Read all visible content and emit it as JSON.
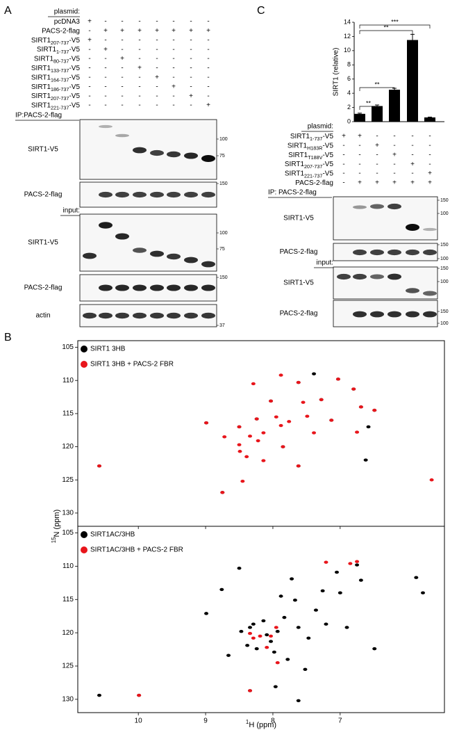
{
  "panel_labels": [
    "A",
    "B",
    "C"
  ],
  "panel_a": {
    "plasmid_header": "plasmid:",
    "rows": [
      {
        "label": {
          "name": "pcDNA3"
        },
        "marks": [
          "+",
          "-",
          "-",
          "-",
          "-",
          "-",
          "-",
          "-"
        ]
      },
      {
        "label": {
          "name": "PACS-2-flag"
        },
        "marks": [
          "-",
          "+",
          "+",
          "+",
          "+",
          "+",
          "+",
          "+"
        ]
      },
      {
        "label": {
          "name": "SIRT1",
          "sub": "207-737",
          "suffix": "-V5"
        },
        "marks": [
          "+",
          "-",
          "-",
          "-",
          "-",
          "-",
          "-",
          "-"
        ]
      },
      {
        "label": {
          "name": "SIRT1",
          "sub": "1-737",
          "suffix": "-V5"
        },
        "marks": [
          "-",
          "+",
          "-",
          "-",
          "-",
          "-",
          "-",
          "-"
        ]
      },
      {
        "label": {
          "name": "SIRT1",
          "sub": "80-737",
          "suffix": "-V5"
        },
        "marks": [
          "-",
          "-",
          "+",
          "-",
          "-",
          "-",
          "-",
          "-"
        ]
      },
      {
        "label": {
          "name": "SIRT1",
          "sub": "133-737",
          "suffix": "-V5"
        },
        "marks": [
          "-",
          "-",
          "-",
          "+",
          "-",
          "-",
          "-",
          "-"
        ]
      },
      {
        "label": {
          "name": "SIRT1",
          "sub": "164-737",
          "suffix": "-V5"
        },
        "marks": [
          "-",
          "-",
          "-",
          "-",
          "+",
          "-",
          "-",
          "-"
        ]
      },
      {
        "label": {
          "name": "SIRT1",
          "sub": "186-737",
          "suffix": "-V5"
        },
        "marks": [
          "-",
          "-",
          "-",
          "-",
          "-",
          "+",
          "-",
          "-"
        ]
      },
      {
        "label": {
          "name": "SIRT1",
          "sub": "207-737",
          "suffix": "-V5"
        },
        "marks": [
          "-",
          "-",
          "-",
          "-",
          "-",
          "-",
          "+",
          "-"
        ]
      },
      {
        "label": {
          "name": "SIRT1",
          "sub": "221-737",
          "suffix": "-V5"
        },
        "marks": [
          "-",
          "-",
          "-",
          "-",
          "-",
          "-",
          "-",
          "+"
        ]
      }
    ],
    "ip_header": "IP:PACS-2-flag",
    "input_header": "input:",
    "blots": [
      {
        "label": "SIRT1-V5",
        "markers": [
          100,
          75
        ]
      },
      {
        "label": "PACS-2-flag",
        "markers": [
          150
        ]
      },
      {
        "label": "SIRT1-V5",
        "markers": [
          100,
          75
        ]
      },
      {
        "label": "PACS-2-flag",
        "markers": [
          150
        ]
      },
      {
        "label": "actin",
        "markers": [
          37
        ]
      }
    ]
  },
  "panel_c": {
    "plasmid_header": "plasmid:",
    "rows": [
      {
        "label": {
          "name": "SIRT1",
          "sub": "1-737",
          "suffix": "-V5"
        },
        "marks": [
          "+",
          "+",
          "-",
          "-",
          "-",
          "-"
        ]
      },
      {
        "label": {
          "name": "SIRT1",
          "sub": "H183R",
          "suffix": "-V5"
        },
        "marks": [
          "-",
          "-",
          "+",
          "-",
          "-",
          "-"
        ]
      },
      {
        "label": {
          "name": "SIRT1",
          "sub": "T188V",
          "suffix": "-V5"
        },
        "marks": [
          "-",
          "-",
          "-",
          "+",
          "-",
          "-"
        ]
      },
      {
        "label": {
          "name": "SIRT1",
          "sub": "207-737",
          "suffix": "-V5"
        },
        "marks": [
          "-",
          "-",
          "-",
          "-",
          "+",
          "-"
        ]
      },
      {
        "label": {
          "name": "SIRT1",
          "sub": "221-737",
          "suffix": "-V5"
        },
        "marks": [
          "-",
          "-",
          "-",
          "-",
          "-",
          "+"
        ]
      },
      {
        "label": {
          "name": "PACS-2-flag"
        },
        "marks": [
          "-",
          "+",
          "+",
          "+",
          "+",
          "+"
        ]
      }
    ],
    "ip_header": "IP: PACS-2-flag",
    "input_header": "input:",
    "blots": [
      {
        "label": "SIRT1-V5",
        "markers": [
          150,
          100
        ]
      },
      {
        "label": "PACS-2-flag",
        "markers": [
          150,
          100
        ]
      },
      {
        "label": "SIRT1-V5",
        "markers": [
          150,
          100
        ]
      },
      {
        "label": "PACS-2-flag",
        "markers": [
          150,
          100
        ]
      }
    ]
  },
  "panel_b": {
    "y_label": {
      "sup": "15",
      "text": "N (ppm)"
    },
    "x_label": {
      "sup": "1",
      "text": "H (ppm)"
    }
  },
  "chart_data": [
    {
      "type": "bar",
      "y_label": "SIRT1 (relative)",
      "categories": [
        null,
        null,
        null,
        null,
        null
      ],
      "values": [
        1.1,
        2.2,
        4.5,
        11.5,
        0.6
      ],
      "errors": [
        0.1,
        0.15,
        0.2,
        0.8,
        0.05
      ],
      "color": "#000000",
      "ylim": [
        0,
        14
      ],
      "yticks": [
        0,
        2,
        4,
        6,
        8,
        10,
        12,
        14
      ],
      "annotations": [
        "**",
        "**",
        "**",
        "***"
      ]
    },
    {
      "type": "scatter",
      "xlim": [
        10.9,
        5.45
      ],
      "xticks": [
        10,
        9,
        8,
        7
      ],
      "ylim": [
        104,
        132
      ],
      "yticks": [
        105,
        110,
        115,
        120,
        125,
        130
      ],
      "series": [
        {
          "name": "SIRT1 3HB",
          "color": "#000000",
          "x": [
            10.58,
            8.99,
            8.5,
            8.24,
            8.03,
            7.85,
            7.62,
            7.28,
            7.13,
            7.03,
            6.8,
            6.69,
            6.58,
            6.49,
            8.75,
            7.62,
            7.39,
            6.62
          ],
          "values": [
            122.9,
            116.4,
            117.0,
            115.8,
            113.1,
            120.0,
            110.3,
            112.9,
            116.0,
            109.8,
            111.3,
            114.0,
            117.0,
            114.5,
            126.9,
            122.9,
            109.0,
            122.0
          ]
        },
        {
          "name": "SIRT1 3HB + PACS-2 FBR",
          "color": "#e8151b",
          "x": [
            10.58,
            8.99,
            8.72,
            8.5,
            8.34,
            8.5,
            8.75,
            8.45,
            8.49,
            8.39,
            8.24,
            8.14,
            8.03,
            7.95,
            7.88,
            7.85,
            8.14,
            7.76,
            7.62,
            7.55,
            7.49,
            7.39,
            7.28,
            7.13,
            7.03,
            6.8,
            6.69,
            6.75,
            8.22,
            7.62,
            8.29,
            7.88,
            6.49,
            5.64
          ],
          "values": [
            122.9,
            116.4,
            118.5,
            117.0,
            118.4,
            119.7,
            126.9,
            125.2,
            120.7,
            121.5,
            115.8,
            117.9,
            113.1,
            115.5,
            116.8,
            120.0,
            122.1,
            116.2,
            110.3,
            113.3,
            115.4,
            117.9,
            112.9,
            116.0,
            109.8,
            111.3,
            114.0,
            117.8,
            119.1,
            122.9,
            110.5,
            109.2,
            114.5,
            125.0
          ]
        }
      ]
    },
    {
      "type": "scatter",
      "xlim": [
        10.9,
        5.45
      ],
      "xticks": [
        10,
        9,
        8,
        7
      ],
      "ylim": [
        104,
        132
      ],
      "yticks": [
        105,
        110,
        115,
        120,
        125,
        130
      ],
      "series": [
        {
          "name": "SIRT1AC/3HB",
          "color": "#000000",
          "x": [
            10.58,
            9.99,
            8.99,
            8.76,
            8.66,
            8.5,
            8.47,
            8.38,
            8.34,
            8.29,
            8.24,
            8.14,
            8.09,
            8.03,
            7.98,
            7.93,
            7.88,
            7.83,
            7.78,
            7.72,
            7.67,
            7.62,
            7.52,
            7.47,
            7.36,
            7.26,
            7.21,
            7.05,
            7.0,
            6.9,
            6.75,
            6.69,
            6.49,
            5.87,
            5.77,
            8.34,
            7.62,
            7.96
          ],
          "values": [
            129.4,
            129.4,
            117.1,
            113.5,
            123.4,
            110.3,
            119.8,
            121.9,
            119.2,
            118.7,
            122.4,
            118.2,
            120.3,
            121.3,
            122.9,
            119.8,
            114.5,
            117.7,
            124.0,
            111.9,
            115.1,
            119.2,
            125.5,
            120.8,
            116.6,
            113.7,
            118.7,
            110.9,
            114.0,
            119.2,
            109.8,
            112.1,
            122.4,
            111.7,
            114.0,
            128.7,
            130.2,
            128.1
          ]
        },
        {
          "name": "SIRT1AC/3HB + PACS-2 FBR",
          "color": "#e8151b",
          "x": [
            9.99,
            8.34,
            8.29,
            8.19,
            8.03,
            7.95,
            8.34,
            7.21,
            6.85,
            6.75,
            7.93,
            8.09
          ],
          "values": [
            129.4,
            120.1,
            120.8,
            120.5,
            120.5,
            119.2,
            128.7,
            109.4,
            109.6,
            109.3,
            124.5,
            122.2
          ]
        }
      ]
    }
  ]
}
